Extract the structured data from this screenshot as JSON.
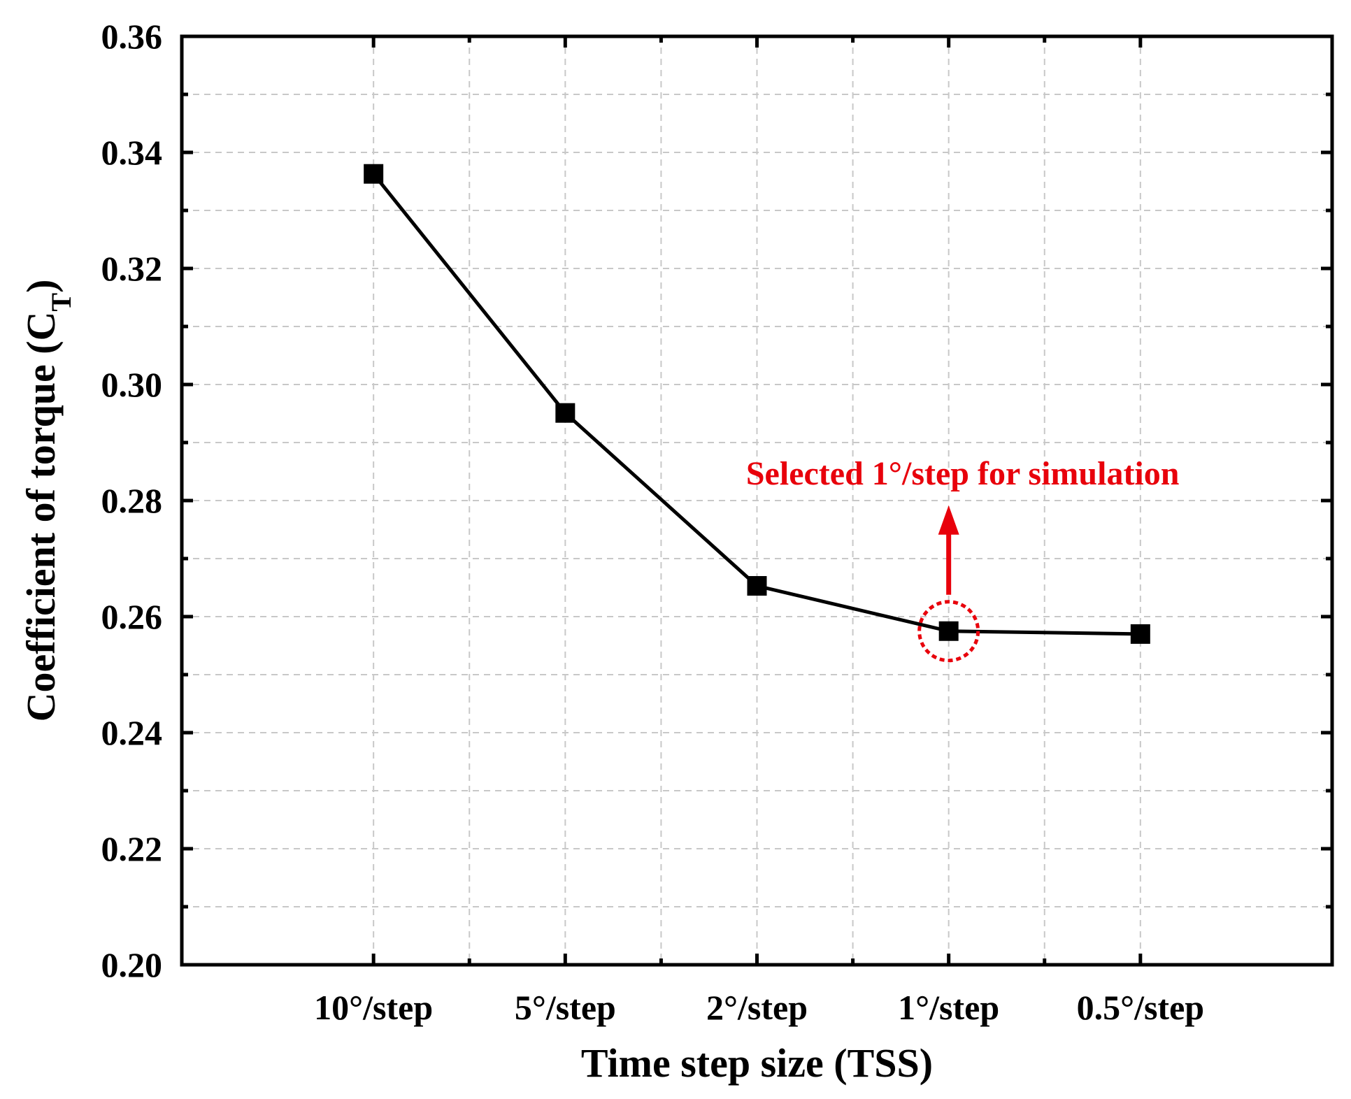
{
  "chart_data": {
    "type": "line",
    "categories": [
      "10°/step",
      "5°/step",
      "2°/step",
      "1°/step",
      "0.5°/step"
    ],
    "series": [
      {
        "values": [
          0.3363,
          0.2951,
          0.2653,
          0.2575,
          0.257
        ],
        "color": "#000000",
        "marker": "square"
      }
    ],
    "xlabel": "Time step size (TSS)",
    "ylabel_main": "Coefficient of torque (C",
    "ylabel_sub": "T",
    "ylabel_close": ")",
    "ylim": [
      0.2,
      0.36
    ],
    "yticks": [
      0.2,
      0.22,
      0.24,
      0.26,
      0.28,
      0.3,
      0.32,
      0.34,
      0.36
    ],
    "ytick_labels": [
      "0.20",
      "0.22",
      "0.24",
      "0.26",
      "0.28",
      "0.30",
      "0.32",
      "0.34",
      "0.36"
    ],
    "grid": true,
    "annotation": {
      "text": "Selected 1°/step for simulation",
      "target_category": "1°/step",
      "color": "#e8000b"
    }
  }
}
